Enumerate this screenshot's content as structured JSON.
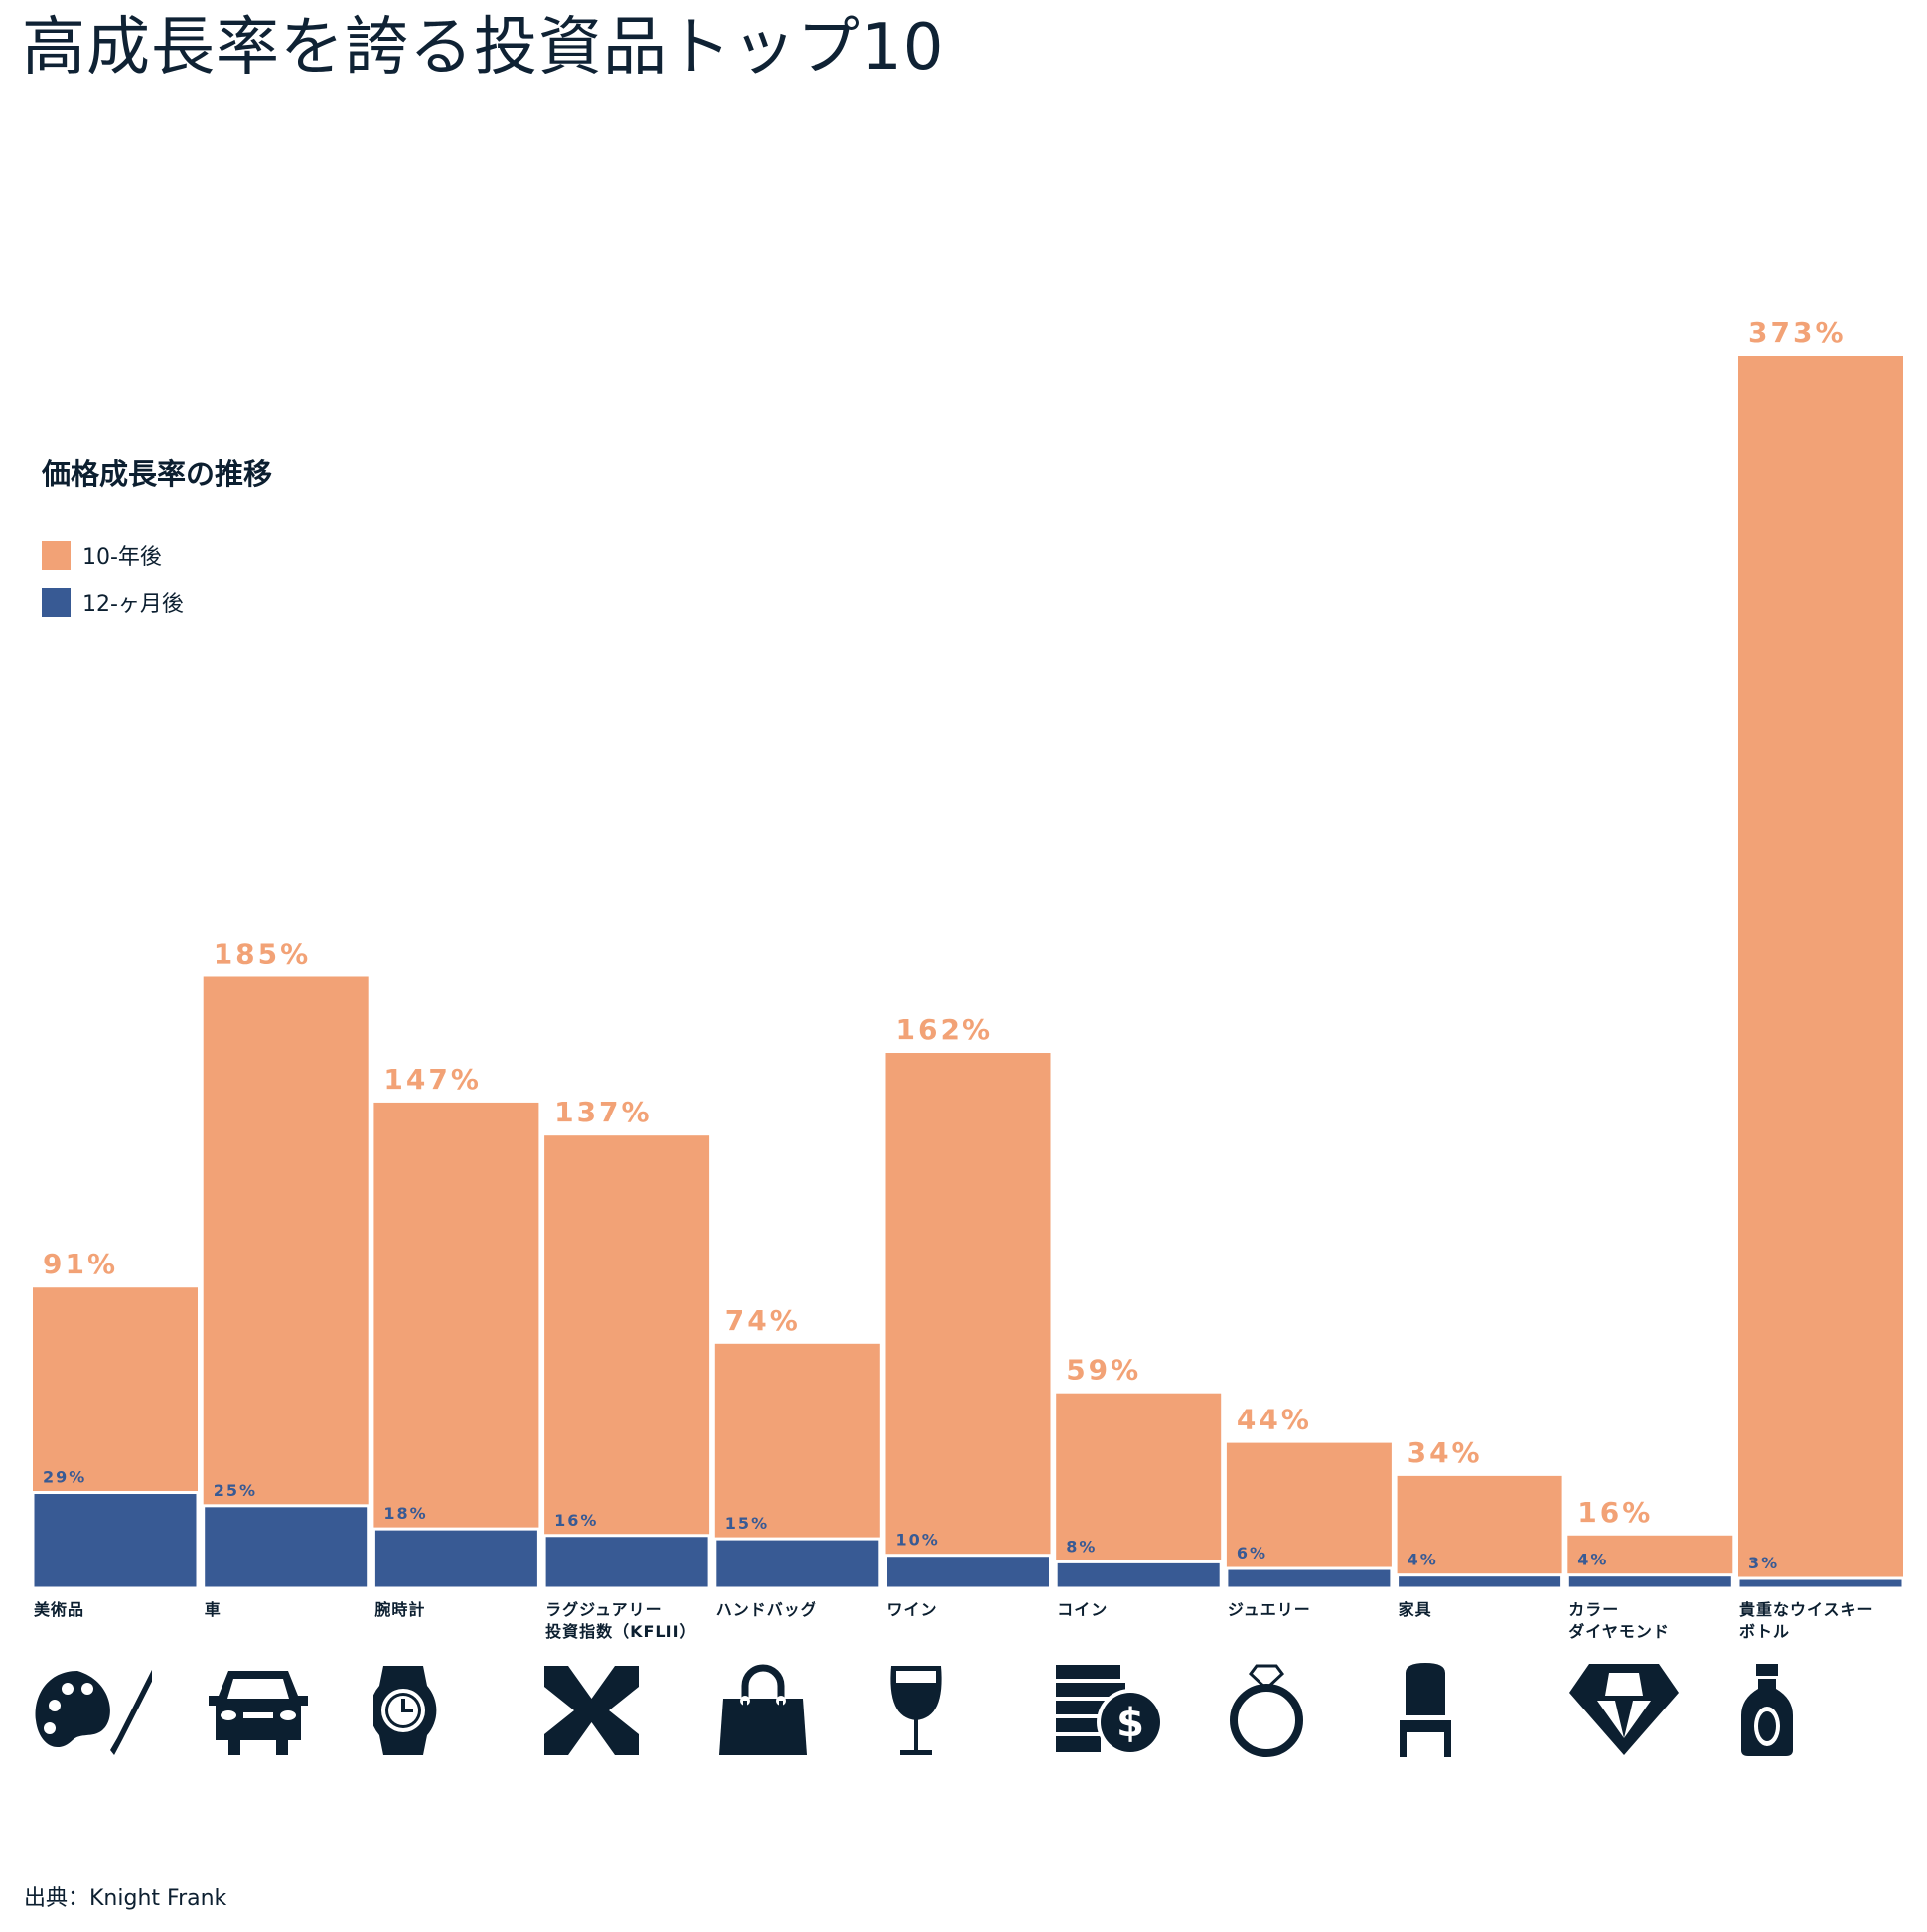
{
  "title": "高成長率を誇る投資品トップ10",
  "legend": {
    "title": "価格成長率の推移",
    "items": [
      {
        "label": "10-年後",
        "color": "#f2a276"
      },
      {
        "label": "12-ヶ月後",
        "color": "#385a94"
      }
    ]
  },
  "source": "出典：Knight Frank",
  "chart_data": {
    "type": "bar",
    "title": "高成長率を誇る投資品トップ10",
    "categories": [
      "美術品",
      "車",
      "腕時計",
      "ラグジュアリー\n投資指数（KFLII）",
      "ハンドバッグ",
      "ワイン",
      "コイン",
      "ジュエリー",
      "家具",
      "カラー\nダイヤモンド",
      "貴重なウイスキー\nボトル"
    ],
    "icons": [
      "palette-icon",
      "car-icon",
      "watch-icon",
      "kflii-logo-icon",
      "handbag-icon",
      "wine-glass-icon",
      "coins-icon",
      "ring-icon",
      "chair-icon",
      "diamond-icon",
      "whisky-bottle-icon"
    ],
    "series": [
      {
        "name": "10-年後",
        "color": "#f2a276",
        "values": [
          91,
          185,
          147,
          137,
          74,
          162,
          59,
          44,
          34,
          16,
          373
        ],
        "labels": [
          "91%",
          "185%",
          "147%",
          "137%",
          "74%",
          "162%",
          "59%",
          "44%",
          "34%",
          "16%",
          "373%"
        ]
      },
      {
        "name": "12-ヶ月後",
        "color": "#385a94",
        "values": [
          29,
          25,
          18,
          16,
          15,
          10,
          8,
          6,
          4,
          4,
          3
        ],
        "labels": [
          "29%",
          "25%",
          "18%",
          "16%",
          "15%",
          "10%",
          "8%",
          "6%",
          "4%",
          "4%",
          "3%"
        ]
      }
    ],
    "ylim": [
      0,
      373
    ],
    "grid": false,
    "legend_position": "left"
  }
}
